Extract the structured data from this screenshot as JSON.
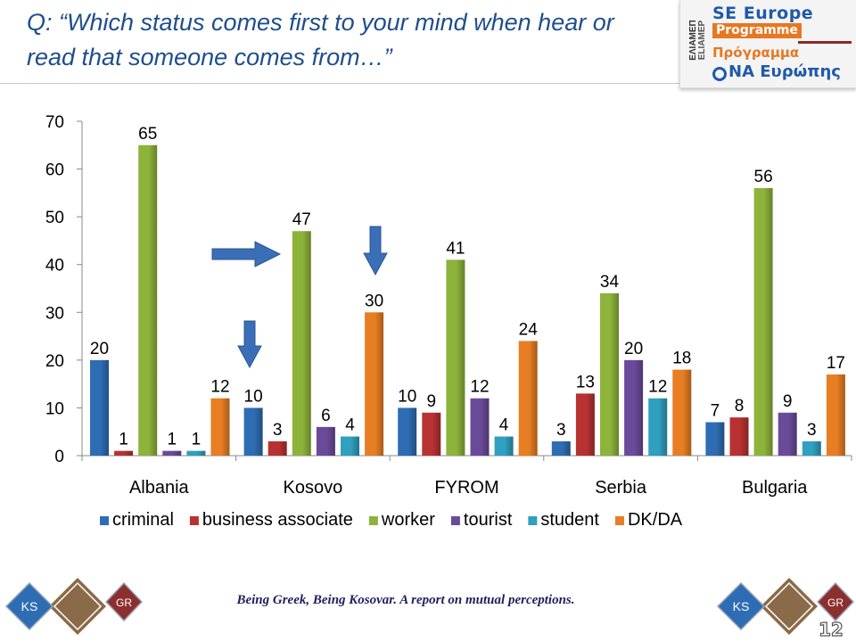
{
  "title": "Q: “Which status comes first to your mind when hear or read that someone comes from…”",
  "logo": {
    "side_text_1": "ΕΛΙΑΜΕΠ",
    "side_text_2": "ELIAMEP",
    "line1": "SE Europe",
    "line2": "Programme",
    "line3": "Πρόγραμμα",
    "line4": "ΝΑ Ευρώπης"
  },
  "footer": "Being Greek, Being Kosovar.   A report on mutual perceptions.",
  "badges": {
    "left": "KS",
    "right": "GR"
  },
  "page_number": "12",
  "colors": {
    "title": "#1f4e8c",
    "criminal": "#2e6db4",
    "business associate": "#b83232",
    "worker": "#8db33a",
    "tourist": "#6a4b9a",
    "student": "#2fa0bf",
    "DK/DA": "#e87e23",
    "arrow": "#3a6fb8",
    "badge_left": "#2e6db4",
    "badge_right": "#8c2f2f",
    "badge_center": "#8a6a48"
  },
  "chart_data": {
    "type": "bar",
    "title": "",
    "xlabel": "",
    "ylabel": "",
    "ylim": [
      0,
      70
    ],
    "yticks": [
      0,
      10,
      20,
      30,
      40,
      50,
      60,
      70
    ],
    "grid": false,
    "legend": "bottom",
    "categories": [
      "Albania",
      "Kosovo",
      "FYROM",
      "Serbia",
      "Bulgaria"
    ],
    "series": [
      {
        "name": "criminal",
        "values": [
          20,
          10,
          10,
          3,
          7
        ]
      },
      {
        "name": "business associate",
        "values": [
          1,
          3,
          9,
          13,
          8
        ]
      },
      {
        "name": "worker",
        "values": [
          65,
          47,
          41,
          34,
          56
        ]
      },
      {
        "name": "tourist",
        "values": [
          1,
          6,
          12,
          20,
          9
        ]
      },
      {
        "name": "student",
        "values": [
          1,
          4,
          4,
          12,
          3
        ]
      },
      {
        "name": "DK/DA",
        "values": [
          12,
          30,
          24,
          18,
          17
        ]
      }
    ]
  }
}
